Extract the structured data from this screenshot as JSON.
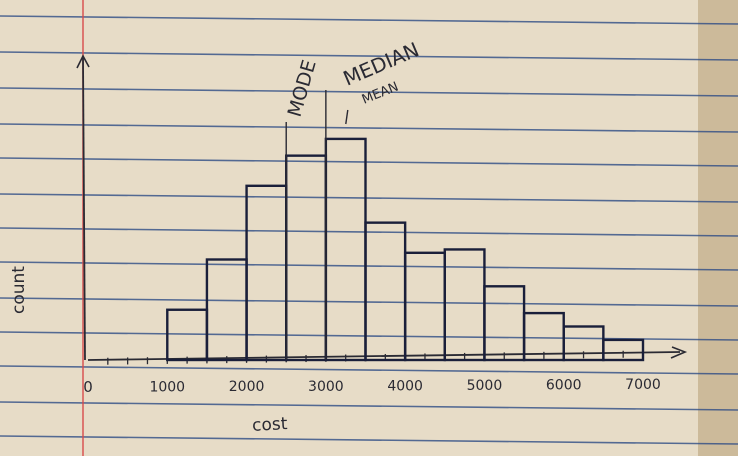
{
  "chart_data": {
    "type": "bar",
    "style": "hand-drawn histogram on lined notebook paper",
    "xlabel": "cost",
    "ylabel": "count",
    "x_ticks": [
      "0",
      "1000",
      "2000",
      "3000",
      "4000",
      "5000",
      "6000",
      "7000"
    ],
    "xlim": [
      0,
      7500
    ],
    "ylim": [
      0,
      10
    ],
    "bins": [
      {
        "start": 1000,
        "end": 1500,
        "count": 1.5
      },
      {
        "start": 1500,
        "end": 2000,
        "count": 3.0
      },
      {
        "start": 2000,
        "end": 2500,
        "count": 5.2
      },
      {
        "start": 2500,
        "end": 3000,
        "count": 6.1
      },
      {
        "start": 3000,
        "end": 3500,
        "count": 6.6
      },
      {
        "start": 3500,
        "end": 4000,
        "count": 4.1
      },
      {
        "start": 4000,
        "end": 4500,
        "count": 3.2
      },
      {
        "start": 4500,
        "end": 5000,
        "count": 3.3
      },
      {
        "start": 5000,
        "end": 5500,
        "count": 2.2
      },
      {
        "start": 5500,
        "end": 6000,
        "count": 1.4
      },
      {
        "start": 6000,
        "end": 6500,
        "count": 1.0
      },
      {
        "start": 6500,
        "end": 7000,
        "count": 0.6
      }
    ],
    "annotations": [
      {
        "text": "MODE",
        "x": 2500
      },
      {
        "text": "MEDIAN",
        "x": 3000
      },
      {
        "text": "MEAN",
        "x": 3100
      }
    ],
    "grid": false
  },
  "colors": {
    "paper_line": "#2f4d86",
    "margin_line": "#d84848",
    "ink": "#1a1f3a",
    "pencil": "#2a2a33"
  }
}
